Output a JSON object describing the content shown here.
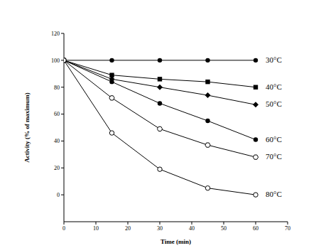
{
  "chart_data": {
    "type": "line",
    "x_label": "Time (min)",
    "y_label": "Activity (% of maximum)",
    "x": [
      0,
      15,
      30,
      45,
      60
    ],
    "xlim": [
      0,
      70
    ],
    "xticks": [
      0,
      10,
      20,
      30,
      40,
      50,
      60,
      70
    ],
    "ylim": [
      -20,
      120
    ],
    "yticks": [
      0,
      20,
      40,
      60,
      80,
      100,
      120
    ],
    "grid": false,
    "series": [
      {
        "name": "30°C",
        "color": "#000000",
        "marker": "circle",
        "values": [
          100,
          100,
          100,
          100,
          100
        ]
      },
      {
        "name": "40°C",
        "color": "#000000",
        "marker": "square",
        "values": [
          100,
          89,
          86,
          84,
          80
        ]
      },
      {
        "name": "50°C",
        "color": "#000000",
        "marker": "diamond",
        "values": [
          100,
          86,
          80,
          74,
          67
        ]
      },
      {
        "name": "60°C",
        "color": "#000000",
        "marker": "circle",
        "values": [
          100,
          84,
          68,
          55,
          41
        ]
      },
      {
        "name": "70°C",
        "color": "#000000",
        "marker": "open_hexagon",
        "values": [
          100,
          72,
          49,
          37,
          28
        ]
      },
      {
        "name": "80°C",
        "color": "#000000",
        "marker": "open_circle",
        "values": [
          100,
          46,
          19,
          5,
          0
        ]
      }
    ]
  }
}
